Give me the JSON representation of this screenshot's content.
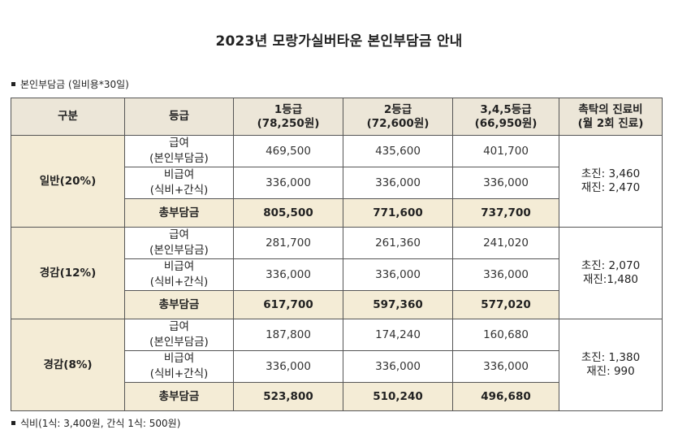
{
  "title": "2023년 모랑가실버타운 본인부담금 안내",
  "subtitle": "본인부담금 (일비용*30일)",
  "header": {
    "col1": "구분",
    "col2": "등급",
    "grade1_line1": "1등급",
    "grade1_line2": "(78,250원)",
    "grade2_line1": "2등급",
    "grade2_line2": "(72,600원)",
    "grade3_line1": "3,4,5등급",
    "grade3_line2": "(66,950원)",
    "doctor_line1": "촉탁의 진료비",
    "doctor_line2": "(월 2회 진료)"
  },
  "row_labels": {
    "benefit_line1": "급여",
    "benefit_line2": "(본인부담금)",
    "nonbenefit_line1": "비급여",
    "nonbenefit_line2": "(식비+간식)",
    "total": "총부담금"
  },
  "groups": [
    {
      "name": "일반(20%)",
      "benefit": [
        "469,500",
        "435,600",
        "401,700"
      ],
      "nonbenefit": [
        "336,000",
        "336,000",
        "336,000"
      ],
      "total": [
        "805,500",
        "771,600",
        "737,700"
      ],
      "doctor_first": "초진: 3,460",
      "doctor_revisit": "재진: 2,470"
    },
    {
      "name": "경감(12%)",
      "benefit": [
        "281,700",
        "261,360",
        "241,020"
      ],
      "nonbenefit": [
        "336,000",
        "336,000",
        "336,000"
      ],
      "total": [
        "617,700",
        "597,360",
        "577,020"
      ],
      "doctor_first": "초진: 2,070",
      "doctor_revisit": "재진:1,480"
    },
    {
      "name": "경감(8%)",
      "benefit": [
        "187,800",
        "174,240",
        "160,680"
      ],
      "nonbenefit": [
        "336,000",
        "336,000",
        "336,000"
      ],
      "total": [
        "523,800",
        "510,240",
        "496,680"
      ],
      "doctor_first": "초진: 1,380",
      "doctor_revisit": "재진: 990"
    }
  ],
  "note": "식비(1식: 3,400원, 간식 1식: 500원)"
}
